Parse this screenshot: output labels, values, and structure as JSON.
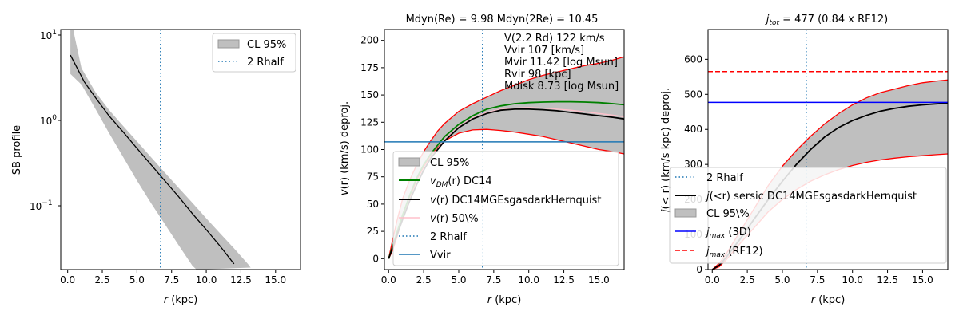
{
  "chart_data": [
    {
      "type": "line",
      "yscale": "log",
      "title": "",
      "xlabel": "r (kpc)",
      "ylabel": "SB profile",
      "xlim": [
        -0.5,
        16.8
      ],
      "ylim": [
        0.018,
        12
      ],
      "xticks": [
        0,
        2.5,
        5,
        7.5,
        10,
        12.5,
        15
      ],
      "xtick_labels": [
        "0.0",
        "2.5",
        "5.0",
        "7.5",
        "10.0",
        "12.5",
        "15.0"
      ],
      "ytick_labels": {
        "e_m1": "10",
        "e_m1_exp": "−1",
        "e0": "10",
        "e0_exp": "0",
        "e1": "10",
        "e1_exp": "1"
      },
      "series": [
        {
          "name": "profile",
          "color": "#000000",
          "x": [
            0.2,
            1.2,
            2,
            3,
            4,
            5,
            6,
            7,
            8,
            9,
            10,
            11,
            12
          ],
          "y": [
            6.0,
            2.9,
            1.9,
            1.15,
            0.75,
            0.48,
            0.31,
            0.2,
            0.13,
            0.082,
            0.053,
            0.034,
            0.021
          ]
        },
        {
          "name": "CL 95% upper",
          "x": [
            0.2,
            0.5,
            1,
            2,
            3,
            4,
            5,
            6,
            7,
            8,
            9,
            10,
            11,
            12,
            13,
            13.2
          ],
          "y": [
            20,
            10,
            4.2,
            2.2,
            1.35,
            0.88,
            0.58,
            0.38,
            0.25,
            0.165,
            0.11,
            0.072,
            0.048,
            0.032,
            0.021,
            0.019
          ]
        },
        {
          "name": "CL 95% lower",
          "x": [
            0.2,
            1,
            2,
            3,
            4,
            5,
            6,
            7,
            8,
            9,
            9.3
          ],
          "y": [
            3.6,
            2.7,
            1.4,
            0.72,
            0.38,
            0.2,
            0.11,
            0.062,
            0.035,
            0.02,
            0.018
          ]
        }
      ],
      "vline": {
        "x": 6.7,
        "name": "2 Rhalf",
        "color": "#1f77b4"
      },
      "legend": {
        "position": "upper-right",
        "entries": [
          "CL 95%",
          "2 Rhalf"
        ]
      }
    },
    {
      "type": "line",
      "title": "Mdyn(Re) = 9.98  Mdyn(2Re) = 10.45",
      "xlabel": "r (kpc)",
      "ylabel": "v(r) (km/s) deproj.",
      "xlim": [
        -0.3,
        16.8
      ],
      "ylim": [
        -10,
        210
      ],
      "xticks": [
        0,
        2.5,
        5,
        7.5,
        10,
        12.5,
        15
      ],
      "xtick_labels": [
        "0.0",
        "2.5",
        "5.0",
        "7.5",
        "10.0",
        "12.5",
        "15.0"
      ],
      "yticks": [
        0,
        25,
        50,
        75,
        100,
        125,
        150,
        175,
        200
      ],
      "ytick_labels": [
        "0",
        "25",
        "50",
        "75",
        "100",
        "125",
        "150",
        "175",
        "200"
      ],
      "series": [
        {
          "name": "CL 95% upper",
          "color": "#ff0000",
          "x": [
            0,
            0.3,
            0.6,
            1,
            1.5,
            2,
            2.5,
            3,
            3.5,
            4,
            5,
            6,
            7,
            8,
            9,
            10,
            11,
            12,
            13,
            14,
            15,
            16,
            16.8
          ],
          "y": [
            0,
            18,
            35,
            55,
            72,
            86,
            98,
            108,
            117,
            124,
            135,
            142,
            148,
            154,
            159,
            164,
            168,
            171,
            174,
            177,
            179,
            182,
            185
          ]
        },
        {
          "name": "CL 95% lower",
          "color": "#ff0000",
          "x": [
            0,
            0.3,
            0.6,
            1,
            1.5,
            2,
            2.5,
            3,
            3.5,
            4,
            5,
            6,
            7,
            8,
            9,
            10,
            11,
            12,
            13,
            14,
            15,
            16,
            16.8
          ],
          "y": [
            0,
            8,
            20,
            38,
            56,
            72,
            84,
            94,
            102,
            108,
            115,
            118,
            118.5,
            117.5,
            116,
            114,
            112,
            109,
            106,
            103,
            100,
            98,
            96
          ]
        },
        {
          "name": "v_DM(r) DC14",
          "color": "#008000",
          "x": [
            0,
            0.5,
            1,
            1.5,
            2,
            2.5,
            3,
            4,
            5,
            6,
            7,
            8,
            9,
            10,
            11,
            12,
            13,
            14,
            15,
            16,
            16.8
          ],
          "y": [
            0,
            20,
            40,
            58,
            74,
            86,
            96,
            112,
            123,
            131,
            137,
            140,
            142,
            143,
            143.5,
            143.8,
            143.8,
            143.5,
            143,
            142,
            141
          ]
        },
        {
          "name": "v(r) DC14MGEsgasdarkHernquist",
          "color": "#000000",
          "x": [
            0,
            0.5,
            1,
            1.5,
            2,
            2.5,
            3,
            4,
            5,
            6,
            7,
            8,
            9,
            10,
            11,
            12,
            13,
            14,
            15,
            16,
            16.8
          ],
          "y": [
            0,
            18,
            36,
            53,
            68,
            81,
            92,
            108,
            120,
            128,
            133,
            136,
            137,
            137,
            136.5,
            135.5,
            134,
            132.5,
            131,
            129.5,
            128
          ]
        },
        {
          "name": "v(r) 50\\%",
          "color": "#ffc0cb",
          "x": [
            0,
            0.5,
            1,
            1.5,
            2,
            2.5,
            3,
            4,
            5,
            6,
            7,
            8,
            9,
            10,
            11,
            12,
            13,
            14,
            15,
            16,
            16.8
          ],
          "y": [
            0,
            19,
            37,
            54,
            69,
            82,
            93,
            109,
            121,
            129,
            134,
            137,
            138,
            138.5,
            138,
            137,
            136,
            134.5,
            133,
            131.5,
            130
          ]
        }
      ],
      "vline": {
        "x": 6.7,
        "name": "2 Rhalf",
        "color": "#1f77b4"
      },
      "hline": {
        "y": 107,
        "name": "Vvir",
        "color": "#1f77b4"
      },
      "annotations": [
        "V(2.2 Rd) 122 km/s",
        "Vvir 107 [km/s]",
        "Mvir 11.42 [log Msun]",
        "Rvir 98 [kpc]",
        "Mdisk 8.73 [log Msun]"
      ],
      "legend": {
        "position": "lower-right",
        "entries": [
          "CL 95%",
          "v_DM(r) DC14",
          "v(r) DC14MGEsgasdarkHernquist",
          "v(r) 50\\%",
          "2 Rhalf",
          "Vvir"
        ]
      }
    },
    {
      "type": "line",
      "title": "j_tot = 477 (0.84 x RF12)",
      "xlabel": "r (kpc)",
      "ylabel": "j(<r) (km/s kpc) deproj.",
      "xlim": [
        -0.3,
        16.8
      ],
      "ylim": [
        0,
        685
      ],
      "xticks": [
        0,
        2.5,
        5,
        7.5,
        10,
        12.5,
        15
      ],
      "xtick_labels": [
        "0.0",
        "2.5",
        "5.0",
        "7.5",
        "10.0",
        "12.5",
        "15.0"
      ],
      "yticks": [
        0,
        100,
        200,
        300,
        400,
        500,
        600
      ],
      "ytick_labels": [
        "0",
        "100",
        "200",
        "300",
        "400",
        "500",
        "600"
      ],
      "series": [
        {
          "name": "CL 95% upper",
          "color": "#ff0000",
          "x": [
            0,
            0.5,
            1,
            2,
            3,
            4,
            5,
            6,
            7,
            8,
            9,
            10,
            11,
            12,
            13,
            14,
            15,
            16,
            16.8
          ],
          "y": [
            0,
            18,
            45,
            110,
            175,
            240,
            295,
            340,
            380,
            415,
            445,
            470,
            490,
            505,
            515,
            525,
            533,
            538,
            541
          ]
        },
        {
          "name": "CL 95% lower",
          "color": "#ff0000",
          "x": [
            0,
            0.5,
            1,
            2,
            3,
            4,
            5,
            6,
            7,
            8,
            9,
            10,
            11,
            12,
            13,
            14,
            15,
            16,
            16.8
          ],
          "y": [
            0,
            8,
            28,
            75,
            120,
            165,
            200,
            228,
            252,
            270,
            285,
            297,
            306,
            313,
            318,
            322,
            325,
            328,
            330
          ]
        },
        {
          "name": "j(<r) sersic DC14MGEsgasdarkHernquist",
          "color": "#000000",
          "x": [
            0,
            0.5,
            1,
            2,
            3,
            4,
            5,
            6,
            7,
            8,
            9,
            10,
            11,
            12,
            13,
            14,
            15,
            16,
            16.8
          ],
          "y": [
            0,
            12,
            35,
            88,
            145,
            200,
            252,
            300,
            342,
            378,
            405,
            425,
            440,
            452,
            460,
            466,
            470,
            473,
            475
          ]
        }
      ],
      "vline": {
        "x": 6.7,
        "name": "2 Rhalf",
        "color": "#1f77b4"
      },
      "hlines": [
        {
          "y": 477,
          "name": "j_max (3D)",
          "color": "#0000ff",
          "style": "solid"
        },
        {
          "y": 565,
          "name": "j_max (RF12)",
          "color": "#ff0000",
          "style": "dashed"
        }
      ],
      "legend": {
        "position": "lower-right",
        "entries": [
          "2 Rhalf",
          "j(<r) sersic DC14MGEsgasdarkHernquist",
          "CL 95\\%",
          "j_max (3D)",
          "j_max (RF12)"
        ]
      }
    }
  ],
  "text": {
    "p1": {
      "ylabel": "SB profile",
      "xlabel_r": "r",
      "xlabel_unit": " (kpc)",
      "leg_cl": "CL 95%",
      "leg_rhalf": "2 Rhalf"
    },
    "p2": {
      "title": "Mdyn(Re) = 9.98  Mdyn(2Re) = 10.45",
      "ylabel_v": "v",
      "ylabel_rest": "(r) (km/s) deproj.",
      "xlabel_r": "r",
      "xlabel_unit": " (kpc)",
      "ann1": "V(2.2 Rd) 122 km/s",
      "ann2": "Vvir 107 [km/s]",
      "ann3": "Mvir 11.42 [log Msun]",
      "ann4": "Rvir 98 [kpc]",
      "ann5": "Mdisk 8.73 [log Msun]",
      "leg_cl": "CL 95%",
      "leg_vdm_v": "v",
      "leg_vdm_sub": "DM",
      "leg_vdm_r": "(r)",
      "leg_vdm_rest": " DC14",
      "leg_v_v": "v",
      "leg_v_r": "(r)",
      "leg_v_rest": " DC14MGEsgasdarkHernquist",
      "leg_v50_v": "v",
      "leg_v50_r": "(r)",
      "leg_v50_rest": " 50\\%",
      "leg_rhalf": "2 Rhalf",
      "leg_vvir": "Vvir"
    },
    "p3": {
      "title_j": "j",
      "title_sub": "tot",
      "title_rest": " = 477 (0.84 x RF12)",
      "ylabel_j": "j",
      "ylabel_rest": "(< r) (km/s kpc) deproj.",
      "xlabel_r": "r",
      "xlabel_unit": " (kpc)",
      "leg_rhalf": "2 Rhalf",
      "leg_j_j": "j",
      "leg_j_mid": "(<r)",
      "leg_j_rest": " sersic DC14MGEsgasdarkHernquist",
      "leg_cl": "CL 95\\%",
      "leg_jmax_j": "j",
      "leg_jmax_sub": "max",
      "leg_jmax_rest": " (3D)",
      "leg_jrf_j": "j",
      "leg_jrf_sub": "max",
      "leg_jrf_rest": " (RF12)"
    }
  }
}
